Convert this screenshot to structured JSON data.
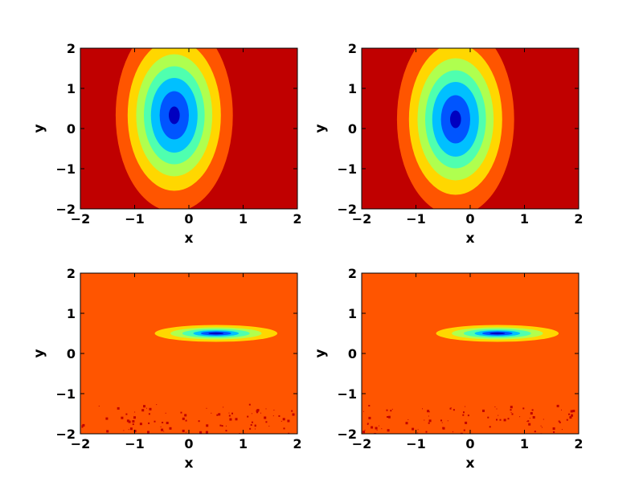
{
  "chart_data": [
    {
      "type": "contour",
      "xlabel": "x",
      "ylabel": "y",
      "xlim": [
        -2,
        2
      ],
      "ylim": [
        -2,
        2
      ],
      "xticks": [
        -2,
        -1,
        0,
        1,
        2
      ],
      "yticks": [
        -2,
        -1,
        0,
        1,
        2
      ],
      "xtick_labels": [
        "−2",
        "−1",
        "0",
        "1",
        "2"
      ],
      "ytick_labels": [
        "−2",
        "−1",
        "0",
        "1",
        "2"
      ],
      "background_color": "#c00000",
      "center": [
        -0.27,
        0.33
      ],
      "levels": [
        {
          "rx": 1.08,
          "ry": 2.4,
          "color": "#ff5500"
        },
        {
          "rx": 0.86,
          "ry": 1.88,
          "color": "#ffd700"
        },
        {
          "rx": 0.7,
          "ry": 1.52,
          "color": "#afff4f"
        },
        {
          "rx": 0.56,
          "ry": 1.22,
          "color": "#4fffaf"
        },
        {
          "rx": 0.43,
          "ry": 0.93,
          "color": "#00c0ff"
        },
        {
          "rx": 0.27,
          "ry": 0.6,
          "color": "#0055ff"
        },
        {
          "rx": 0.1,
          "ry": 0.22,
          "color": "#0000c0"
        }
      ],
      "noise": false
    },
    {
      "type": "contour",
      "xlabel": "x",
      "ylabel": "y",
      "xlim": [
        -2,
        2
      ],
      "ylim": [
        -2,
        2
      ],
      "xticks": [
        -2,
        -1,
        0,
        1,
        2
      ],
      "yticks": [
        -2,
        -1,
        0,
        1,
        2
      ],
      "xtick_labels": [
        "−2",
        "−1",
        "0",
        "1",
        "2"
      ],
      "ytick_labels": [
        "−2",
        "−1",
        "0",
        "1",
        "2"
      ],
      "background_color": "#c00000",
      "center": [
        -0.27,
        0.23
      ],
      "levels": [
        {
          "rx": 1.08,
          "ry": 2.4,
          "color": "#ff5500"
        },
        {
          "rx": 0.86,
          "ry": 1.88,
          "color": "#ffd700"
        },
        {
          "rx": 0.7,
          "ry": 1.52,
          "color": "#afff4f"
        },
        {
          "rx": 0.56,
          "ry": 1.22,
          "color": "#4fffaf"
        },
        {
          "rx": 0.43,
          "ry": 0.93,
          "color": "#00c0ff"
        },
        {
          "rx": 0.27,
          "ry": 0.6,
          "color": "#0055ff"
        },
        {
          "rx": 0.1,
          "ry": 0.22,
          "color": "#0000c0"
        }
      ],
      "noise": false
    },
    {
      "type": "contour",
      "xlabel": "x",
      "ylabel": "y",
      "xlim": [
        -2,
        2
      ],
      "ylim": [
        -2,
        2
      ],
      "xticks": [
        -2,
        -1,
        0,
        1,
        2
      ],
      "yticks": [
        -2,
        -1,
        0,
        1,
        2
      ],
      "xtick_labels": [
        "−2",
        "−1",
        "0",
        "1",
        "2"
      ],
      "ytick_labels": [
        "−2",
        "−1",
        "0",
        "1",
        "2"
      ],
      "background_color": "#ff5500",
      "center": [
        0.5,
        0.5
      ],
      "levels": [
        {
          "rx": 1.13,
          "ry": 0.21,
          "color": "#ffd700"
        },
        {
          "rx": 0.84,
          "ry": 0.15,
          "color": "#afff4f"
        },
        {
          "rx": 0.62,
          "ry": 0.11,
          "color": "#4fffaf"
        },
        {
          "rx": 0.42,
          "ry": 0.075,
          "color": "#00c0ff"
        },
        {
          "rx": 0.28,
          "ry": 0.05,
          "color": "#0055ff"
        },
        {
          "rx": 0.14,
          "ry": 0.025,
          "color": "#0000c0"
        }
      ],
      "noise": true,
      "noise_color": "#c00000"
    },
    {
      "type": "contour",
      "xlabel": "x",
      "ylabel": "y",
      "xlim": [
        -2,
        2
      ],
      "ylim": [
        -2,
        2
      ],
      "xticks": [
        -2,
        -1,
        0,
        1,
        2
      ],
      "yticks": [
        -2,
        -1,
        0,
        1,
        2
      ],
      "xtick_labels": [
        "−2",
        "−1",
        "0",
        "1",
        "2"
      ],
      "ytick_labels": [
        "−2",
        "−1",
        "0",
        "1",
        "2"
      ],
      "background_color": "#ff5500",
      "center": [
        0.5,
        0.5
      ],
      "levels": [
        {
          "rx": 1.13,
          "ry": 0.21,
          "color": "#ffd700"
        },
        {
          "rx": 0.84,
          "ry": 0.15,
          "color": "#afff4f"
        },
        {
          "rx": 0.62,
          "ry": 0.11,
          "color": "#4fffaf"
        },
        {
          "rx": 0.42,
          "ry": 0.075,
          "color": "#00c0ff"
        },
        {
          "rx": 0.28,
          "ry": 0.05,
          "color": "#0055ff"
        },
        {
          "rx": 0.14,
          "ry": 0.025,
          "color": "#0000c0"
        }
      ],
      "noise": true,
      "noise_color": "#c00000"
    }
  ]
}
